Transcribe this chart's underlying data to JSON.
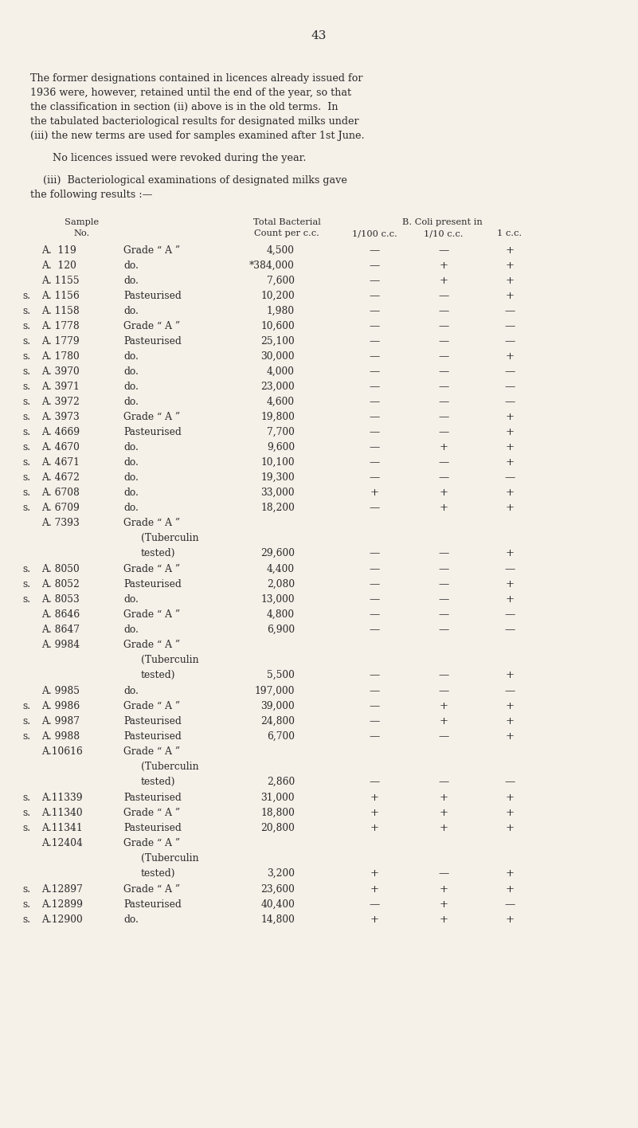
{
  "bg_color": "#f5f0e8",
  "text_color": "#2a2a2a",
  "page_number": "43",
  "para1_lines": [
    "The former designations contained in licences already issued for",
    "1936 were, however, retained until the end of the year, so that",
    "the classification in section (ii) above is in the old terms.  In",
    "the tabulated bacteriological results for designated milks under",
    "(iii) the new terms are used for samples examined after 1st June."
  ],
  "para2": "No licences issued were revoked during the year.",
  "para3_lines": [
    "    (iii)  Bacteriological examinations of designated milks gave",
    "the following results :—"
  ],
  "rows": [
    {
      "s": "",
      "num": "A.  119",
      "desc": "Grade “ A ”",
      "tb": false,
      "count": "4,500",
      "c100": "—",
      "c10": "—",
      "c1": "+"
    },
    {
      "s": "",
      "num": "A.  120",
      "desc": "do.",
      "tb": false,
      "count": "*384,000",
      "c100": "—",
      "c10": "+",
      "c1": "+"
    },
    {
      "s": "",
      "num": "A. 1155",
      "desc": "do.",
      "tb": false,
      "count": "7,600",
      "c100": "—",
      "c10": "+",
      "c1": "+"
    },
    {
      "s": "s.",
      "num": "A. 1156",
      "desc": "Pasteurised",
      "tb": false,
      "count": "10,200",
      "c100": "—",
      "c10": "—",
      "c1": "+"
    },
    {
      "s": "s.",
      "num": "A. 1158",
      "desc": "do.",
      "tb": false,
      "count": "1,980",
      "c100": "—",
      "c10": "—",
      "c1": "—"
    },
    {
      "s": "s.",
      "num": "A. 1778",
      "desc": "Grade “ A ”",
      "tb": false,
      "count": "10,600",
      "c100": "—",
      "c10": "—",
      "c1": "—"
    },
    {
      "s": "s.",
      "num": "A. 1779",
      "desc": "Pasteurised",
      "tb": false,
      "count": "25,100",
      "c100": "—",
      "c10": "—",
      "c1": "—"
    },
    {
      "s": "s.",
      "num": "A. 1780",
      "desc": "do.",
      "tb": false,
      "count": "30,000",
      "c100": "—",
      "c10": "—",
      "c1": "+"
    },
    {
      "s": "s.",
      "num": "A. 3970",
      "desc": "do.",
      "tb": false,
      "count": "4,000",
      "c100": "—",
      "c10": "—",
      "c1": "—"
    },
    {
      "s": "s.",
      "num": "A. 3971",
      "desc": "do.",
      "tb": false,
      "count": "23,000",
      "c100": "—",
      "c10": "—",
      "c1": "—"
    },
    {
      "s": "s.",
      "num": "A. 3972",
      "desc": "do.",
      "tb": false,
      "count": "4,600",
      "c100": "—",
      "c10": "—",
      "c1": "—"
    },
    {
      "s": "s.",
      "num": "A. 3973",
      "desc": "Grade “ A ”",
      "tb": false,
      "count": "19,800",
      "c100": "—",
      "c10": "—",
      "c1": "+"
    },
    {
      "s": "s.",
      "num": "A. 4669",
      "desc": "Pasteurised",
      "tb": false,
      "count": "7,700",
      "c100": "—",
      "c10": "—",
      "c1": "+"
    },
    {
      "s": "s.",
      "num": "A. 4670",
      "desc": "do.",
      "tb": false,
      "count": "9,600",
      "c100": "—",
      "c10": "+",
      "c1": "+"
    },
    {
      "s": "s.",
      "num": "A. 4671",
      "desc": "do.",
      "tb": false,
      "count": "10,100",
      "c100": "—",
      "c10": "—",
      "c1": "+"
    },
    {
      "s": "s.",
      "num": "A. 4672",
      "desc": "do.",
      "tb": false,
      "count": "19,300",
      "c100": "—",
      "c10": "—",
      "c1": "—"
    },
    {
      "s": "s.",
      "num": "A. 6708",
      "desc": "do.",
      "tb": false,
      "count": "33,000",
      "c100": "+",
      "c10": "+",
      "c1": "+"
    },
    {
      "s": "s.",
      "num": "A. 6709",
      "desc": "do.",
      "tb": false,
      "count": "18,200",
      "c100": "—",
      "c10": "+",
      "c1": "+"
    },
    {
      "s": "",
      "num": "A. 7393",
      "desc": "Grade “ A ”",
      "tb": true,
      "count": "29,600",
      "c100": "—",
      "c10": "—",
      "c1": "+"
    },
    {
      "s": "s.",
      "num": "A. 8050",
      "desc": "Grade “ A ”",
      "tb": false,
      "count": "4,400",
      "c100": "—",
      "c10": "—",
      "c1": "—"
    },
    {
      "s": "s.",
      "num": "A. 8052",
      "desc": "Pasteurised",
      "tb": false,
      "count": "2,080",
      "c100": "—",
      "c10": "—",
      "c1": "+"
    },
    {
      "s": "s.",
      "num": "A. 8053",
      "desc": "do.",
      "tb": false,
      "count": "13,000",
      "c100": "—",
      "c10": "—",
      "c1": "+"
    },
    {
      "s": "",
      "num": "A. 8646",
      "desc": "Grade “ A ”",
      "tb": false,
      "count": "4,800",
      "c100": "—",
      "c10": "—",
      "c1": "—"
    },
    {
      "s": "",
      "num": "A. 8647",
      "desc": "do.",
      "tb": false,
      "count": "6,900",
      "c100": "—",
      "c10": "—",
      "c1": "—"
    },
    {
      "s": "",
      "num": "A. 9984",
      "desc": "Grade “ A ”",
      "tb": true,
      "count": "5,500",
      "c100": "—",
      "c10": "—",
      "c1": "+"
    },
    {
      "s": "",
      "num": "A. 9985",
      "desc": "do.",
      "tb": false,
      "count": "197,000",
      "c100": "—",
      "c10": "—",
      "c1": "—"
    },
    {
      "s": "s.",
      "num": "A. 9986",
      "desc": "Grade “ A ”",
      "tb": false,
      "count": "39,000",
      "c100": "—",
      "c10": "+",
      "c1": "+"
    },
    {
      "s": "s.",
      "num": "A. 9987",
      "desc": "Pasteurised",
      "tb": false,
      "count": "24,800",
      "c100": "—",
      "c10": "+",
      "c1": "+"
    },
    {
      "s": "s.",
      "num": "A. 9988",
      "desc": "Pasteurised",
      "tb": false,
      "count": "6,700",
      "c100": "—",
      "c10": "—",
      "c1": "+"
    },
    {
      "s": "",
      "num": "A.10616",
      "desc": "Grade “ A ”",
      "tb": true,
      "count": "2,860",
      "c100": "—",
      "c10": "—",
      "c1": "—"
    },
    {
      "s": "s.",
      "num": "A.11339",
      "desc": "Pasteurised",
      "tb": false,
      "count": "31,000",
      "c100": "+",
      "c10": "+",
      "c1": "+"
    },
    {
      "s": "s.",
      "num": "A.11340",
      "desc": "Grade “ A ”",
      "tb": false,
      "count": "18,800",
      "c100": "+",
      "c10": "+",
      "c1": "+"
    },
    {
      "s": "s.",
      "num": "A.11341",
      "desc": "Pasteurised",
      "tb": false,
      "count": "20,800",
      "c100": "+",
      "c10": "+",
      "c1": "+"
    },
    {
      "s": "",
      "num": "A.12404",
      "desc": "Grade “ A ”",
      "tb": true,
      "count": "3,200",
      "c100": "+",
      "c10": "—",
      "c1": "+"
    },
    {
      "s": "s.",
      "num": "A.12897",
      "desc": "Grade “ A ”",
      "tb": false,
      "count": "23,600",
      "c100": "+",
      "c10": "+",
      "c1": "+"
    },
    {
      "s": "s.",
      "num": "A.12899",
      "desc": "Pasteurised",
      "tb": false,
      "count": "40,400",
      "c100": "—",
      "c10": "+",
      "c1": "—"
    },
    {
      "s": "s.",
      "num": "A.12900",
      "desc": "do.",
      "tb": false,
      "count": "14,800",
      "c100": "+",
      "c10": "+",
      "c1": "+"
    }
  ]
}
